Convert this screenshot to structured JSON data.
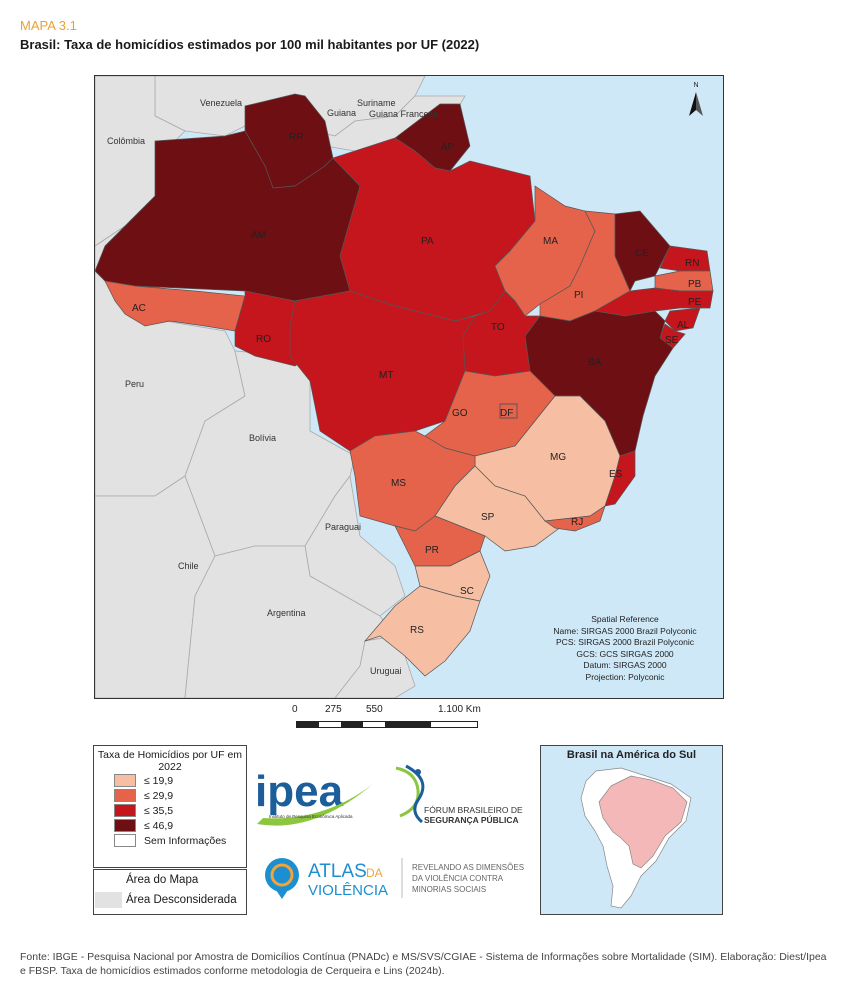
{
  "header": {
    "kicker": "MAPA 3.1",
    "title": "Brasil: Taxa de homicídios estimados por 100 mil habitantes por UF (2022)"
  },
  "colors": {
    "ocean": "#cfe8f7",
    "other_country": "#e2e2e2",
    "class1": "#f6bfa3",
    "class2": "#e6634b",
    "class3": "#c4161c",
    "class4": "#6e0f13",
    "border": "#555555"
  },
  "map": {
    "north_arrow": "N",
    "countries": [
      "Venezuela",
      "Suriname",
      "Guiana",
      "Guiana Francesa",
      "Colômbia",
      "Peru",
      "Bolívia",
      "Paraguai",
      "Chile",
      "Argentina",
      "Uruguai"
    ],
    "states": [
      {
        "uf": "RR",
        "class": 4
      },
      {
        "uf": "AP",
        "class": 4
      },
      {
        "uf": "AM",
        "class": 4
      },
      {
        "uf": "PA",
        "class": 3
      },
      {
        "uf": "MA",
        "class": 2
      },
      {
        "uf": "CE",
        "class": 4
      },
      {
        "uf": "RN",
        "class": 3
      },
      {
        "uf": "PB",
        "class": 2
      },
      {
        "uf": "PE",
        "class": 3
      },
      {
        "uf": "AL",
        "class": 3
      },
      {
        "uf": "SE",
        "class": 3
      },
      {
        "uf": "PI",
        "class": 2
      },
      {
        "uf": "AC",
        "class": 2
      },
      {
        "uf": "RO",
        "class": 3
      },
      {
        "uf": "MT",
        "class": 3
      },
      {
        "uf": "TO",
        "class": 3
      },
      {
        "uf": "BA",
        "class": 4
      },
      {
        "uf": "GO",
        "class": 2
      },
      {
        "uf": "DF",
        "class": 2
      },
      {
        "uf": "MG",
        "class": 1
      },
      {
        "uf": "ES",
        "class": 3
      },
      {
        "uf": "MS",
        "class": 2
      },
      {
        "uf": "SP",
        "class": 1
      },
      {
        "uf": "RJ",
        "class": 2
      },
      {
        "uf": "PR",
        "class": 2
      },
      {
        "uf": "SC",
        "class": 1
      },
      {
        "uf": "RS",
        "class": 1
      }
    ],
    "spatial_reference": [
      "Spatial Reference",
      "Name: SIRGAS 2000 Brazil Polyconic",
      "PCS: SIRGAS 2000 Brazil Polyconic",
      "GCS: GCS SIRGAS 2000",
      "Datum: SIRGAS 2000",
      "Projection: Polyconic"
    ]
  },
  "scale_bar": {
    "ticks": [
      "0",
      "275",
      "550",
      "1.100 Km"
    ]
  },
  "legend": {
    "title": "Taxa de Homicídios por UF em 2022",
    "items": [
      {
        "label": "≤ 19,9",
        "color": "#f6bfa3"
      },
      {
        "label": "≤ 29,9",
        "color": "#e6634b"
      },
      {
        "label": "≤ 35,5",
        "color": "#c4161c"
      },
      {
        "label": "≤ 46,9",
        "color": "#6e0f13"
      },
      {
        "label": "Sem Informações",
        "color": "#ffffff"
      }
    ],
    "area_items": [
      {
        "label": "Área do Mapa",
        "color": "#ffffff"
      },
      {
        "label": "Área Desconsiderada",
        "color": "#e2e2e2"
      }
    ]
  },
  "logos": {
    "ipea": "ipea",
    "ipea_sub": "Instituto de Pesquisa Econômica Aplicada",
    "fbsp_line1": "FÓRUM BRASILEIRO DE",
    "fbsp_line2": "SEGURANÇA PÚBLICA",
    "atlas_line1": "ATLAS",
    "atlas_da": "DA",
    "atlas_line2": "VIOLÊNCIA",
    "tagline1": "REVELANDO AS DIMENSÕES",
    "tagline2": "DA VIOLÊNCIA CONTRA",
    "tagline3": "MINORIAS SOCIAIS"
  },
  "inset": {
    "title": "Brasil na América do Sul"
  },
  "footer": {
    "source": "Fonte: IBGE - Pesquisa Nacional por Amostra de Domicílios Contínua (PNADc) e MS/SVS/CGIAE - Sistema de Informações sobre Mortalidade (SIM). Elaboração: Diest/Ipea e FBSP. Taxa de homicídios estimados conforme metodologia de Cerqueira e Lins (2024b)."
  }
}
